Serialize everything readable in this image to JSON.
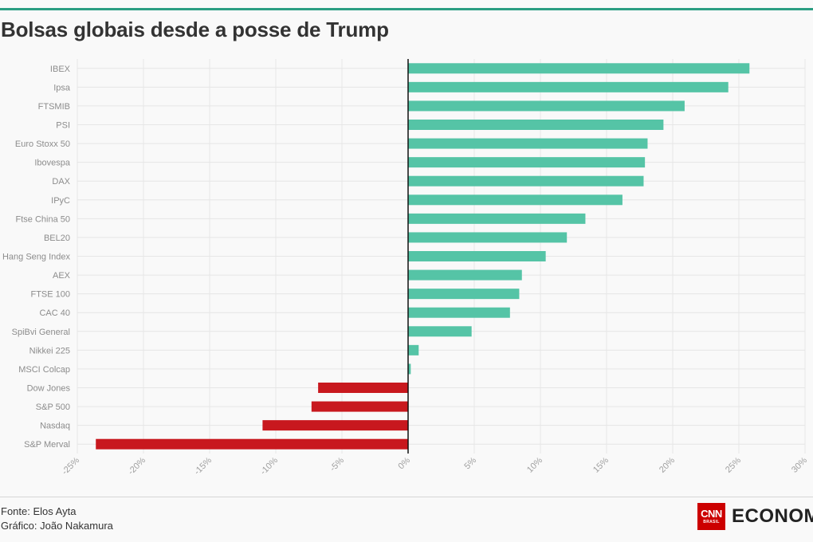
{
  "header": {
    "title": "Bolsas globais desde a posse de Trump"
  },
  "colors": {
    "positive": "#55c4a6",
    "negative": "#c8181e",
    "accent": "#2b9e82",
    "zero_line": "#111111",
    "grid": "#e6e6e6",
    "label": "#8c8c8c"
  },
  "chart_data": {
    "type": "bar",
    "orientation": "horizontal",
    "title": "Bolsas globais desde a posse de Trump",
    "xlabel": "",
    "ylabel": "",
    "xlim": [
      -25,
      30
    ],
    "ticks": [
      -25,
      -20,
      -15,
      -10,
      -5,
      0,
      5,
      10,
      15,
      20,
      25,
      30
    ],
    "tick_labels": [
      "-25%",
      "-20%",
      "-15%",
      "-10%",
      "-5%",
      "0%",
      "5%",
      "10%",
      "15%",
      "20%",
      "25%",
      "30%"
    ],
    "grid": true,
    "categories": [
      "IBEX",
      "Ipsa",
      "FTSMIB",
      "PSI",
      "Euro Stoxx 50",
      "Ibovespa",
      "DAX",
      "IPyC",
      "Ftse China 50",
      "BEL20",
      "Hang Seng Index",
      "AEX",
      "FTSE 100",
      "CAC 40",
      "SpiBvi General",
      "Nikkei 225",
      "MSCI Colcap",
      "Dow Jones",
      "S&P 500",
      "Nasdaq",
      "S&P Merval"
    ],
    "values": [
      25.8,
      24.2,
      20.9,
      19.3,
      18.1,
      17.9,
      17.8,
      16.2,
      13.4,
      12.0,
      10.4,
      8.6,
      8.4,
      7.7,
      4.8,
      0.8,
      0.2,
      -6.8,
      -7.3,
      -11.0,
      -23.6
    ]
  },
  "footer": {
    "source": "Fonte: Elos Ayta",
    "credit": "Gráfico: João Nakamura",
    "logo_cnn": "CNN",
    "logo_brasil": "BRASIL",
    "logo_economia": "ECONOMIA"
  }
}
